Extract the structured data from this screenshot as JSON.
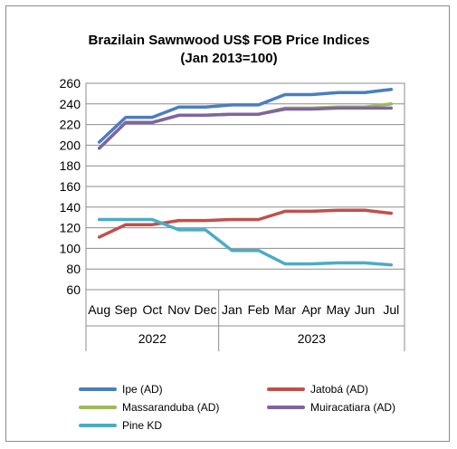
{
  "chart_data": {
    "type": "line",
    "title": [
      "Brazilain Sawnwood US$ FOB Price Indices",
      "(Jan 2013=100)"
    ],
    "xlabel": "",
    "ylabel": "",
    "categories": [
      "Aug",
      "Sep",
      "Oct",
      "Nov",
      "Dec",
      "Jan",
      "Feb",
      "Mar",
      "Apr",
      "May",
      "Jun",
      "Jul"
    ],
    "year_groups": [
      {
        "label": "2022",
        "start": 0,
        "end": 4
      },
      {
        "label": "2023",
        "start": 5,
        "end": 11
      }
    ],
    "ylim": [
      60,
      260
    ],
    "yticks": [
      60,
      80,
      100,
      120,
      140,
      160,
      180,
      200,
      220,
      240,
      260
    ],
    "grid": true,
    "legend_position": "bottom",
    "series": [
      {
        "name": "Ipe (AD)",
        "color": "#4a7ebf",
        "values": [
          203,
          227,
          227,
          237,
          237,
          239,
          239,
          249,
          249,
          251,
          251,
          254
        ]
      },
      {
        "name": "Jatobá (AD)",
        "color": "#c0504d",
        "values": [
          111,
          123,
          123,
          127,
          127,
          128,
          128,
          136,
          136,
          137,
          137,
          134
        ]
      },
      {
        "name": "Massaranduba (AD)",
        "color": "#9bbb59",
        "values": [
          197,
          222,
          222,
          229,
          229,
          230,
          230,
          236,
          236,
          237,
          237,
          240
        ]
      },
      {
        "name": "Muiracatiara (AD)",
        "color": "#8064a2",
        "values": [
          197,
          222,
          222,
          229,
          229,
          230,
          230,
          235,
          235,
          236,
          236,
          236
        ]
      },
      {
        "name": "Pine KD",
        "color": "#4bacc6",
        "values": [
          128,
          128,
          128,
          118,
          118,
          98,
          98,
          85,
          85,
          86,
          86,
          84
        ]
      }
    ]
  }
}
